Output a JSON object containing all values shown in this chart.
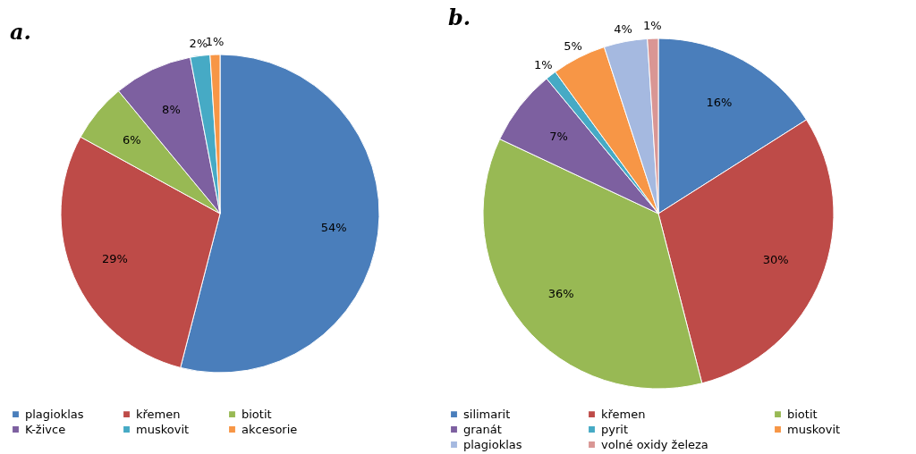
{
  "chart_data": [
    {
      "type": "pie",
      "title": "a.",
      "categories": [
        "plagioklas",
        "křemen",
        "biotit",
        "K-živce",
        "muskovit",
        "akcesorie"
      ],
      "values": [
        54,
        29,
        6,
        8,
        2,
        1
      ],
      "value_labels": [
        "54%",
        "29%",
        "6%",
        "8%",
        "2%",
        "1%"
      ],
      "colors": [
        "#4a7ebb",
        "#be4b48",
        "#98b954",
        "#7d60a0",
        "#46aac5",
        "#f79646"
      ],
      "legend": "bottom"
    },
    {
      "type": "pie",
      "title": "b.",
      "categories": [
        "silimarit",
        "křemen",
        "biotit",
        "granát",
        "pyrit",
        "muskovit",
        "plagioklas",
        "volné oxidy železa"
      ],
      "values": [
        16,
        30,
        36,
        7,
        1,
        5,
        4,
        1
      ],
      "value_labels": [
        "16%",
        "30%",
        "36%",
        "7%",
        "1%",
        "5%",
        "4%",
        "1%"
      ],
      "colors": [
        "#4a7ebb",
        "#be4b48",
        "#98b954",
        "#7d60a0",
        "#46aac5",
        "#f79646",
        "#a5b9e0",
        "#d99694"
      ],
      "legend": "bottom"
    }
  ]
}
